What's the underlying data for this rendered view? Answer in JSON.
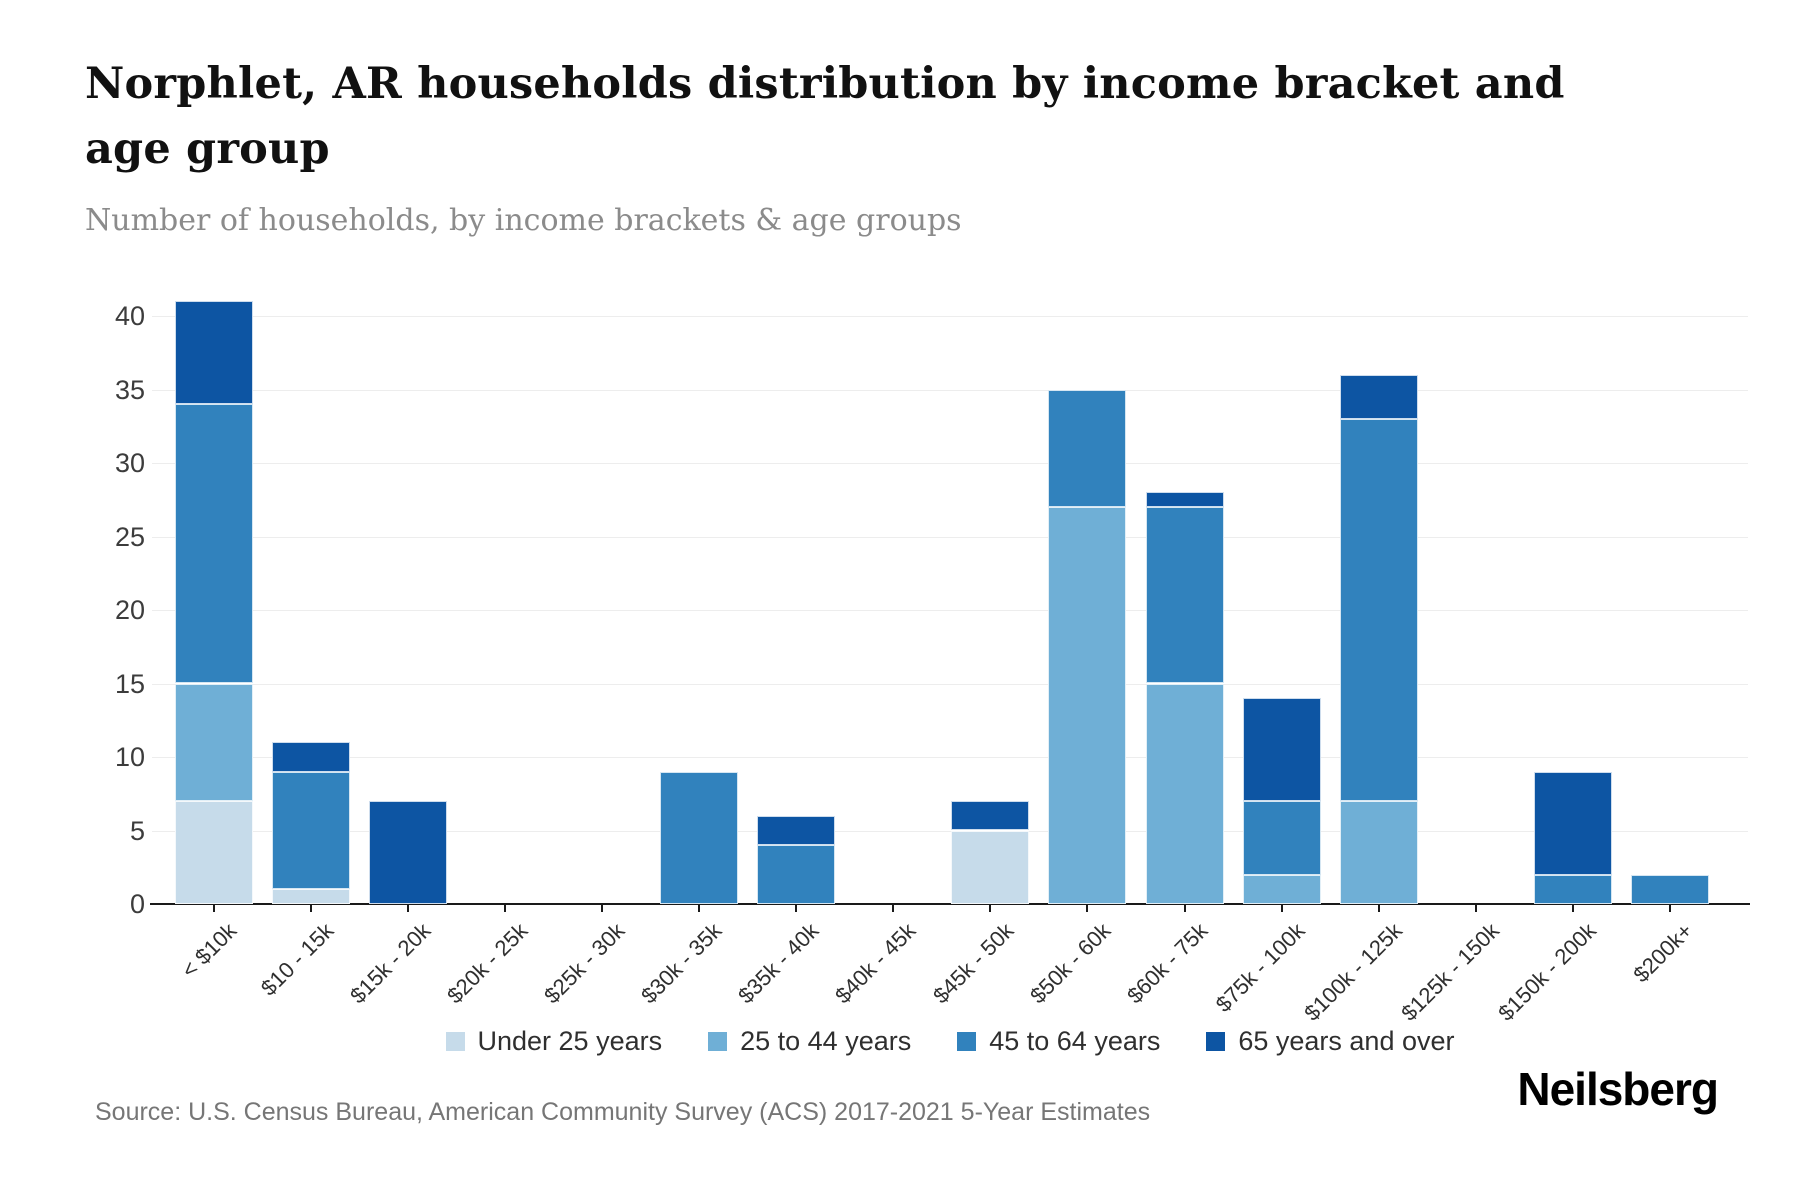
{
  "header": {
    "title": "Norphlet, AR households distribution by income bracket and age group",
    "subtitle": "Number of households, by income brackets & age groups"
  },
  "chart_data": {
    "type": "bar",
    "stacked": true,
    "title": "Norphlet, AR households distribution by income bracket and age group",
    "subtitle": "Number of households, by income brackets & age groups",
    "xlabel": "",
    "ylabel": "",
    "ylim": [
      0,
      40
    ],
    "yticks": [
      0,
      5,
      10,
      15,
      20,
      25,
      30,
      35,
      40
    ],
    "grid": true,
    "legend_position": "bottom",
    "categories": [
      "< $10k",
      "$10 - 15k",
      "$15k - 20k",
      "$20k - 25k",
      "$25k - 30k",
      "$30k - 35k",
      "$35k - 40k",
      "$40k - 45k",
      "$45k - 50k",
      "$50k - 60k",
      "$60k - 75k",
      "$75k - 100k",
      "$100k - 125k",
      "$125k - 150k",
      "$150k - 200k",
      "$200k+"
    ],
    "series": [
      {
        "name": "Under 25 years",
        "color": "#c6dbea",
        "values": [
          7,
          1,
          0,
          0,
          0,
          0,
          0,
          0,
          5,
          0,
          0,
          0,
          0,
          0,
          0,
          0
        ]
      },
      {
        "name": "25 to 44 years",
        "color": "#6fafd6",
        "values": [
          8,
          0,
          0,
          0,
          0,
          0,
          0,
          0,
          0,
          27,
          15,
          2,
          7,
          0,
          0,
          0
        ]
      },
      {
        "name": "45 to 64 years",
        "color": "#3182bd",
        "values": [
          19,
          8,
          0,
          0,
          0,
          9,
          4,
          0,
          0,
          8,
          12,
          5,
          26,
          0,
          2,
          2
        ]
      },
      {
        "name": "65 years and over",
        "color": "#0d55a3",
        "values": [
          7,
          2,
          7,
          0,
          0,
          0,
          2,
          0,
          2,
          0,
          1,
          7,
          3,
          0,
          7,
          0
        ]
      }
    ],
    "totals": [
      41,
      11,
      7,
      0,
      0,
      9,
      6,
      0,
      7,
      35,
      28,
      14,
      36,
      0,
      9,
      2
    ]
  },
  "footer": {
    "source": "Source: U.S. Census Bureau, American Community Survey (ACS) 2017-2021 5-Year Estimates",
    "brand": "Neilsberg"
  }
}
